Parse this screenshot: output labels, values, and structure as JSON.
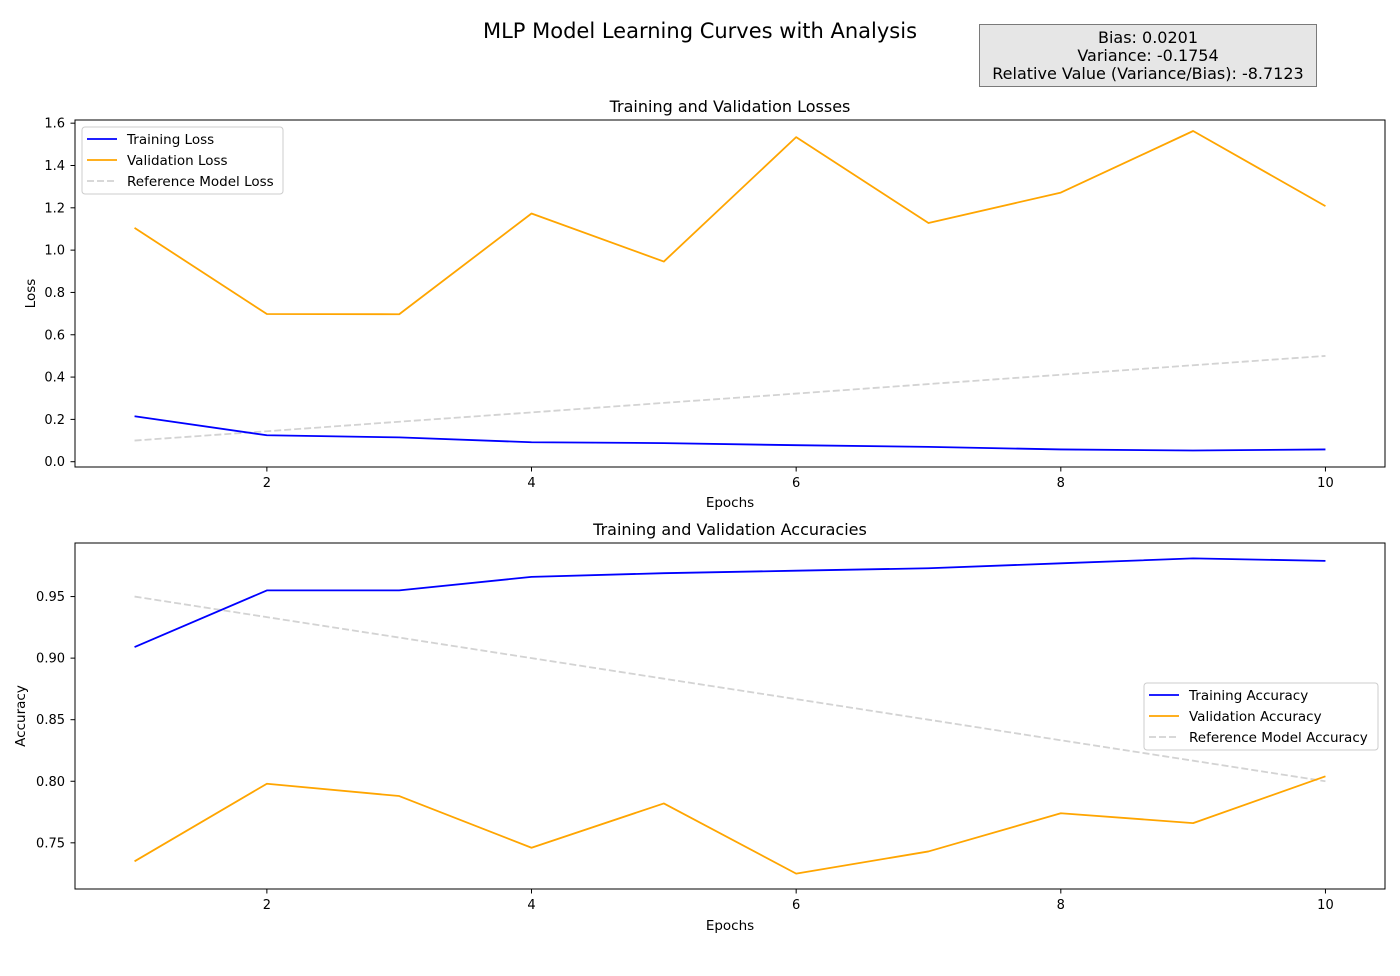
{
  "figure": {
    "suptitle": "MLP Model Learning Curves with Analysis",
    "stats": {
      "bias": "Bias: 0.0201",
      "variance": "Variance: -0.1754",
      "relative": "Relative Value (Variance/Bias): -8.7123"
    }
  },
  "colors": {
    "training": "#0000ff",
    "validation": "#ffa500",
    "reference": "#d3d3d3"
  },
  "chart_data": [
    {
      "type": "line",
      "title": "Training and Validation Losses",
      "xlabel": "Epochs",
      "ylabel": "Loss",
      "xlim": [
        0.55,
        10.45
      ],
      "ylim": [
        -0.025,
        1.615
      ],
      "xticks": [
        2,
        4,
        6,
        8,
        10
      ],
      "yticks": [
        "0.0",
        "0.2",
        "0.4",
        "0.6",
        "0.8",
        "1.0",
        "1.2",
        "1.4",
        "1.6"
      ],
      "grid": false,
      "legend_position": "upper left",
      "x": [
        1,
        2,
        3,
        4,
        5,
        6,
        7,
        8,
        9,
        10
      ],
      "series": [
        {
          "name": "Training Loss",
          "color": "#0000ff",
          "style": "solid",
          "values": [
            0.215,
            0.125,
            0.115,
            0.092,
            0.088,
            0.078,
            0.07,
            0.058,
            0.053,
            0.058
          ]
        },
        {
          "name": "Validation Loss",
          "color": "#ffa500",
          "style": "solid",
          "values": [
            1.105,
            0.698,
            0.697,
            1.173,
            0.946,
            1.534,
            1.128,
            1.272,
            1.563,
            1.208
          ]
        },
        {
          "name": "Reference Model Loss",
          "color": "#d3d3d3",
          "style": "dashed",
          "values": [
            0.1,
            0.144,
            0.189,
            0.233,
            0.278,
            0.322,
            0.367,
            0.411,
            0.456,
            0.5
          ]
        }
      ]
    },
    {
      "type": "line",
      "title": "Training and Validation Accuracies",
      "xlabel": "Epochs",
      "ylabel": "Accuracy",
      "xlim": [
        0.55,
        10.45
      ],
      "ylim": [
        0.7125,
        0.9935
      ],
      "xticks": [
        2,
        4,
        6,
        8,
        10
      ],
      "yticks": [
        "0.75",
        "0.80",
        "0.85",
        "0.90",
        "0.95"
      ],
      "grid": false,
      "legend_position": "center right",
      "x": [
        1,
        2,
        3,
        4,
        5,
        6,
        7,
        8,
        9,
        10
      ],
      "series": [
        {
          "name": "Training Accuracy",
          "color": "#0000ff",
          "style": "solid",
          "values": [
            0.909,
            0.955,
            0.955,
            0.966,
            0.969,
            0.971,
            0.973,
            0.977,
            0.981,
            0.979
          ]
        },
        {
          "name": "Validation Accuracy",
          "color": "#ffa500",
          "style": "solid",
          "values": [
            0.735,
            0.798,
            0.788,
            0.746,
            0.782,
            0.725,
            0.743,
            0.774,
            0.766,
            0.804
          ]
        },
        {
          "name": "Reference Model Accuracy",
          "color": "#d3d3d3",
          "style": "dashed",
          "values": [
            0.95,
            0.9333,
            0.9167,
            0.9,
            0.8833,
            0.8667,
            0.85,
            0.8333,
            0.8167,
            0.8
          ]
        }
      ]
    }
  ]
}
